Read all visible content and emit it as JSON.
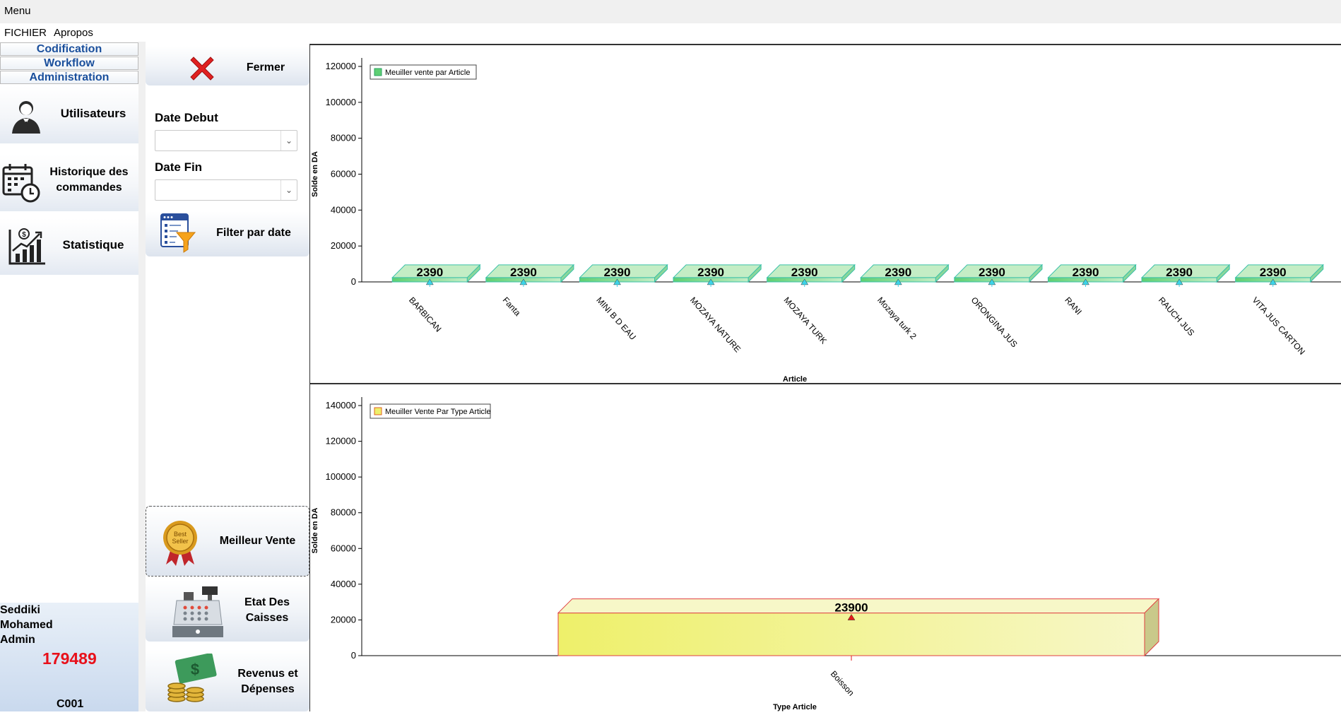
{
  "menubar": {
    "title": "Menu",
    "items": [
      "FICHIER",
      "Apropos"
    ]
  },
  "sidebar": {
    "sections": [
      "Codification",
      "Workflow",
      "Administration"
    ],
    "buttons": [
      {
        "label": "Utilisateurs",
        "icon": "user-icon"
      },
      {
        "label": "Historique des commandes",
        "icon": "calendar-clock-icon"
      },
      {
        "label": "Statistique",
        "icon": "chart-growth-icon"
      }
    ]
  },
  "user": {
    "name_line1": "Seddiki",
    "name_line2": "Mohamed",
    "role": "Admin",
    "number": "179489",
    "code": "C001"
  },
  "panel": {
    "close_label": "Fermer",
    "date_start_label": "Date Debut",
    "date_start_value": "",
    "date_end_label": "Date Fin",
    "date_end_value": "",
    "filter_label": "Filter par date",
    "best_seller_label": "Meilleur Vente",
    "best_seller_badge": [
      "Best",
      "Seller"
    ],
    "cash_label": "Etat Des Caisses",
    "revenue_label": "Revenus et Dépenses"
  },
  "colors": {
    "accent_blue": "#1a4f9c",
    "number_red": "#e8101a",
    "bar_green": "#7ed98a",
    "bar_yellow": "#eef06a",
    "close_red": "#e02020"
  },
  "chart_data": [
    {
      "type": "bar",
      "legend": "Meuiller vente par Article",
      "xlabel": "Article",
      "ylabel": "Solde en DA",
      "ylim": [
        0,
        120000
      ],
      "yticks": [
        0,
        20000,
        40000,
        60000,
        80000,
        100000,
        120000
      ],
      "categories": [
        "BARBICAN",
        "Fanta",
        "MINI B D EAU",
        "MOZAYA NATURE",
        "MOZAYA TURK",
        "Mozaya turk 2",
        "ORONGINA JUS",
        "RANI",
        "RAUCH JUS",
        "VITA JUS CARTON"
      ],
      "values": [
        2390,
        2390,
        2390,
        2390,
        2390,
        2390,
        2390,
        2390,
        2390,
        2390
      ],
      "legend_position": "top-left"
    },
    {
      "type": "bar",
      "legend": "Meuiller Vente Par Type Article",
      "xlabel": "Type Article",
      "ylabel": "Solde en DA",
      "ylim": [
        0,
        140000
      ],
      "yticks": [
        0,
        20000,
        40000,
        60000,
        80000,
        100000,
        120000,
        140000
      ],
      "categories": [
        "Boisson"
      ],
      "values": [
        23900
      ],
      "legend_position": "top-left"
    }
  ]
}
